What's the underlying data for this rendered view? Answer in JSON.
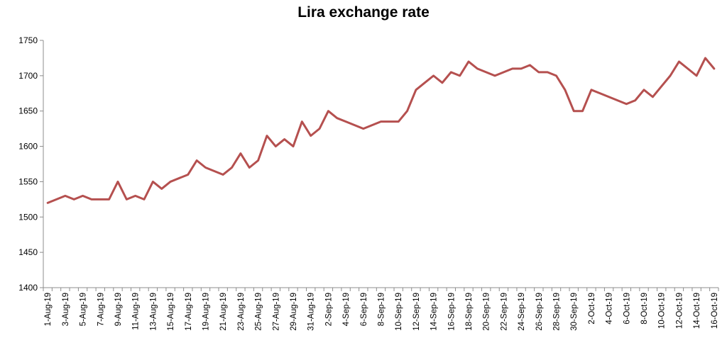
{
  "chart_data": {
    "type": "line",
    "title": "Lira exchange rate",
    "xlabel": "",
    "ylabel": "",
    "ylim": [
      1400,
      1750
    ],
    "yticks": [
      1400,
      1450,
      1500,
      1550,
      1600,
      1650,
      1700,
      1750
    ],
    "grid": false,
    "legend": "none",
    "x": [
      "1-Aug-19",
      "2-Aug-19",
      "3-Aug-19",
      "4-Aug-19",
      "5-Aug-19",
      "6-Aug-19",
      "7-Aug-19",
      "8-Aug-19",
      "9-Aug-19",
      "10-Aug-19",
      "11-Aug-19",
      "12-Aug-19",
      "13-Aug-19",
      "14-Aug-19",
      "15-Aug-19",
      "16-Aug-19",
      "17-Aug-19",
      "18-Aug-19",
      "19-Aug-19",
      "20-Aug-19",
      "21-Aug-19",
      "22-Aug-19",
      "23-Aug-19",
      "24-Aug-19",
      "25-Aug-19",
      "26-Aug-19",
      "27-Aug-19",
      "28-Aug-19",
      "29-Aug-19",
      "30-Aug-19",
      "31-Aug-19",
      "1-Sep-19",
      "2-Sep-19",
      "3-Sep-19",
      "4-Sep-19",
      "5-Sep-19",
      "6-Sep-19",
      "7-Sep-19",
      "8-Sep-19",
      "9-Sep-19",
      "10-Sep-19",
      "11-Sep-19",
      "12-Sep-19",
      "13-Sep-19",
      "14-Sep-19",
      "15-Sep-19",
      "16-Sep-19",
      "17-Sep-19",
      "18-Sep-19",
      "19-Sep-19",
      "20-Sep-19",
      "21-Sep-19",
      "22-Sep-19",
      "23-Sep-19",
      "24-Sep-19",
      "25-Sep-19",
      "26-Sep-19",
      "27-Sep-19",
      "28-Sep-19",
      "29-Sep-19",
      "30-Sep-19",
      "1-Oct-19",
      "2-Oct-19",
      "3-Oct-19",
      "4-Oct-19",
      "5-Oct-19",
      "6-Oct-19",
      "7-Oct-19",
      "8-Oct-19",
      "9-Oct-19",
      "10-Oct-19",
      "11-Oct-19",
      "12-Oct-19",
      "13-Oct-19",
      "14-Oct-19",
      "15-Oct-19",
      "16-Oct-19"
    ],
    "tick_labels": [
      "1-Aug-19",
      "3-Aug-19",
      "5-Aug-19",
      "7-Aug-19",
      "9-Aug-19",
      "11-Aug-19",
      "13-Aug-19",
      "15-Aug-19",
      "17-Aug-19",
      "19-Aug-19",
      "21-Aug-19",
      "23-Aug-19",
      "25-Aug-19",
      "27-Aug-19",
      "29-Aug-19",
      "31-Aug-19",
      "2-Sep-19",
      "4-Sep-19",
      "6-Sep-19",
      "8-Sep-19",
      "10-Sep-19",
      "12-Sep-19",
      "14-Sep-19",
      "16-Sep-19",
      "18-Sep-19",
      "20-Sep-19",
      "22-Sep-19",
      "24-Sep-19",
      "26-Sep-19",
      "28-Sep-19",
      "30-Sep-19",
      "2-Oct-19",
      "4-Oct-19",
      "6-Oct-19",
      "8-Oct-19",
      "10-Oct-19",
      "12-Oct-19",
      "14-Oct-19",
      "16-Oct-19"
    ],
    "series": [
      {
        "color": "#b5504f",
        "values": [
          1520,
          1525,
          1530,
          1525,
          1530,
          1525,
          1525,
          1525,
          1550,
          1525,
          1530,
          1525,
          1550,
          1540,
          1550,
          1555,
          1560,
          1580,
          1570,
          1565,
          1560,
          1570,
          1590,
          1570,
          1580,
          1615,
          1600,
          1610,
          1600,
          1635,
          1615,
          1625,
          1650,
          1640,
          1635,
          1630,
          1625,
          1630,
          1635,
          1635,
          1635,
          1650,
          1680,
          1690,
          1700,
          1690,
          1705,
          1700,
          1720,
          1710,
          1705,
          1700,
          1705,
          1710,
          1710,
          1715,
          1705,
          1705,
          1700,
          1680,
          1650,
          1650,
          1680,
          1675,
          1670,
          1665,
          1660,
          1665,
          1680,
          1670,
          1685,
          1700,
          1720,
          1710,
          1700,
          1725,
          1710
        ]
      }
    ]
  }
}
